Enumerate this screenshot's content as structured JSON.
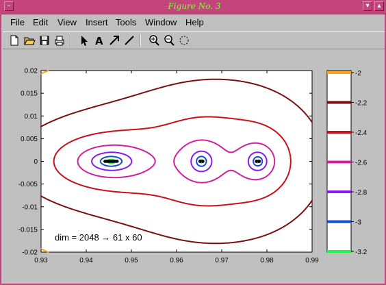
{
  "window": {
    "title": "Figure No. 3"
  },
  "menu": [
    "File",
    "Edit",
    "View",
    "Insert",
    "Tools",
    "Window",
    "Help"
  ],
  "toolbar": {
    "tools": [
      "new-file-icon",
      "open-folder-icon",
      "save-icon",
      "print-icon",
      "select-arrow-icon",
      "text-icon",
      "arrow-icon",
      "line-icon",
      "zoom-in-icon",
      "zoom-out-icon",
      "rotate-icon"
    ]
  },
  "colors": {
    "titlebar": "#c4457c",
    "title_text": "#7cff3c",
    "plot_bg": "#ffffff",
    "frame_bg": "#c0c0c0"
  },
  "chart_data": {
    "type": "contour",
    "title": "",
    "xlabel": "",
    "ylabel": "",
    "xlim": [
      0.93,
      0.99
    ],
    "ylim": [
      -0.02,
      0.02
    ],
    "xticks": [
      "0.93",
      "0.94",
      "0.95",
      "0.96",
      "0.97",
      "0.98",
      "0.99"
    ],
    "yticks": [
      "0.02",
      "0.015",
      "0.01",
      "0.005",
      "0",
      "-0.005",
      "-0.01",
      "-0.015",
      "-0.02"
    ],
    "annotation": "dim = 2048 → 61 x 60",
    "sources": [
      {
        "x": 0.9455,
        "y": 0.0
      },
      {
        "x": 0.9655,
        "y": 0.0
      },
      {
        "x": 0.978,
        "y": 0.0
      }
    ],
    "levels": [
      {
        "level": -2.0,
        "color": "#ffa31a"
      },
      {
        "level": -2.2,
        "color": "#7a0f0f"
      },
      {
        "level": -2.4,
        "color": "#c8101a"
      },
      {
        "level": -2.6,
        "color": "#d21ea0"
      },
      {
        "level": -2.8,
        "color": "#8a1af0"
      },
      {
        "level": -3.0,
        "color": "#1a4ad2"
      },
      {
        "level": -3.2,
        "color": "#2af04a"
      }
    ],
    "colorbar": {
      "ticks": [
        "-2",
        "-2.2",
        "-2.4",
        "-2.6",
        "-2.8",
        "-3",
        "-3.2"
      ]
    }
  }
}
